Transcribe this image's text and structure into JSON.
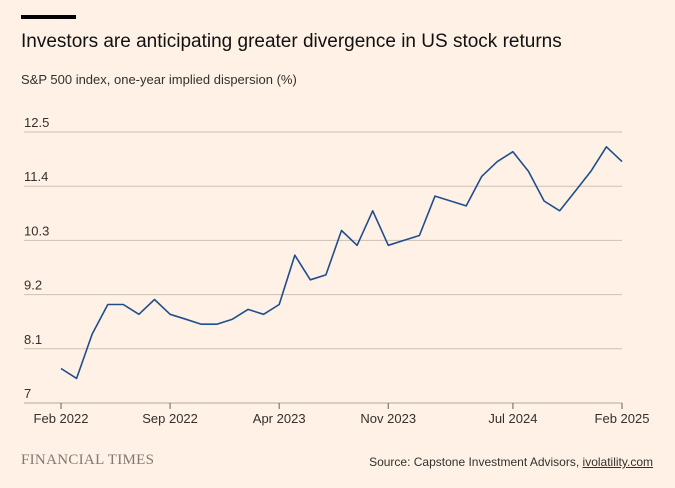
{
  "header": {
    "title": "Investors are anticipating greater divergence in US stock returns",
    "subtitle": "S&P 500 index, one-year implied dispersion (%)"
  },
  "footer": {
    "brand": "FINANCIAL TIMES",
    "source_prefix": "Source: Capstone Investment Advisors, ",
    "source_link": "ivolatility.com"
  },
  "colors": {
    "background": "#FFF1E5",
    "line": "#1F4E8C",
    "grid": "#CCC1B7",
    "text": "#33302E"
  },
  "chart_data": {
    "type": "line",
    "title": "Investors are anticipating greater divergence in US stock returns",
    "ylabel": "S&P 500 index, one-year implied dispersion (%)",
    "ylim": [
      7,
      12.5
    ],
    "yticks": [
      "7",
      "8.1",
      "9.2",
      "10.3",
      "11.4",
      "12.5"
    ],
    "yticks_values": [
      7,
      8.1,
      9.2,
      10.3,
      11.4,
      12.5
    ],
    "xticks": [
      "Feb 2022",
      "Sep 2022",
      "Apr 2023",
      "Nov 2023",
      "Jul 2024",
      "Feb 2025"
    ],
    "xticks_values": [
      "2022-02",
      "2022-09",
      "2023-04",
      "2023-11",
      "2024-07",
      "2025-02"
    ],
    "xlim": [
      "2022-02",
      "2025-02"
    ],
    "grid": true,
    "series": [
      {
        "x": [
          "2022-02",
          "2022-03",
          "2022-04",
          "2022-05",
          "2022-06",
          "2022-07",
          "2022-08",
          "2022-09",
          "2022-10",
          "2022-11",
          "2022-12",
          "2023-01",
          "2023-02",
          "2023-03",
          "2023-04",
          "2023-05",
          "2023-06",
          "2023-07",
          "2023-08",
          "2023-09",
          "2023-10",
          "2023-11",
          "2023-12",
          "2024-01",
          "2024-02",
          "2024-03",
          "2024-04",
          "2024-05",
          "2024-06",
          "2024-07",
          "2024-08",
          "2024-09",
          "2024-10",
          "2024-11",
          "2024-12",
          "2025-01",
          "2025-02"
        ],
        "values": [
          7.7,
          7.5,
          8.4,
          9.0,
          9.0,
          8.8,
          9.1,
          8.8,
          8.7,
          8.6,
          8.6,
          8.7,
          8.9,
          8.8,
          9.0,
          10.0,
          9.5,
          9.6,
          10.5,
          10.2,
          10.9,
          10.2,
          10.3,
          10.4,
          11.2,
          11.1,
          11.0,
          11.6,
          11.9,
          12.1,
          11.7,
          11.1,
          10.9,
          11.3,
          11.7,
          12.2,
          11.9
        ]
      }
    ]
  }
}
